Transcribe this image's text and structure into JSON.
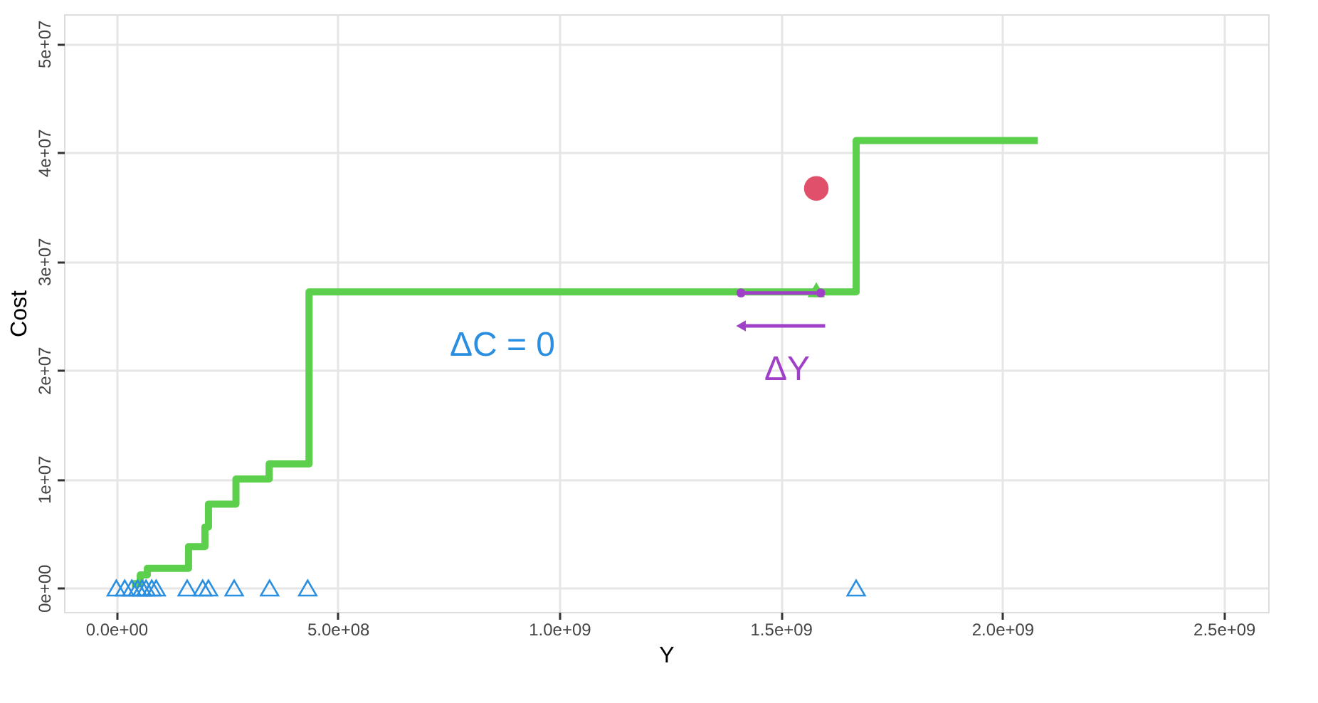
{
  "chart_data": {
    "type": "step",
    "xlabel": "Y",
    "ylabel": "Cost",
    "xlim": [
      -118000000,
      2600000000
    ],
    "ylim": [
      -2200000,
      52700000
    ],
    "xticks": [
      {
        "value": 0,
        "label": "0.0e+00"
      },
      {
        "value": 500000000,
        "label": "5.0e+08"
      },
      {
        "value": 1000000000,
        "label": "1.0e+09"
      },
      {
        "value": 1500000000,
        "label": "1.5e+09"
      },
      {
        "value": 2000000000,
        "label": "2.0e+09"
      },
      {
        "value": 2500000000,
        "label": "2.5e+09"
      }
    ],
    "yticks": [
      {
        "value": 0,
        "label": "0e+00"
      },
      {
        "value": 10000000,
        "label": "1e+07"
      },
      {
        "value": 20000000,
        "label": "2e+07"
      },
      {
        "value": 30000000,
        "label": "3e+07"
      },
      {
        "value": 40000000,
        "label": "4e+07"
      },
      {
        "value": 50000000,
        "label": "5e+07"
      }
    ],
    "grid": true,
    "series": [
      {
        "color": "#5ccf4c",
        "x": [
          35000000,
          54000000,
          70000000,
          163000000,
          200000000,
          208000000,
          270000000,
          345000000,
          435000000,
          1670000000,
          2080000000
        ],
        "values": [
          400000,
          1200000,
          1800000,
          3800000,
          5600000,
          7700000,
          10000000,
          11400000,
          27200000,
          41100000,
          41100000
        ]
      },
      {
        "type": "scatter",
        "marker": "triangle",
        "color": "#2a8fe0",
        "x": [
          0,
          19000000,
          35000000,
          48000000,
          58000000,
          67000000,
          80000000,
          90000000,
          160000000,
          195000000,
          208000000,
          266000000,
          346000000,
          432000000,
          1670000000
        ],
        "values": [
          0,
          0,
          0,
          0,
          0,
          0,
          0,
          0,
          0,
          0,
          0,
          0,
          0,
          0,
          0
        ]
      },
      {
        "type": "scatter",
        "marker": "triangle",
        "color": "#5ccf4c",
        "x": [
          1580000000
        ],
        "values": [
          27400000
        ]
      },
      {
        "type": "scatter",
        "marker": "circle",
        "color": "#e0506a",
        "x": [
          1580000000
        ],
        "values": [
          36700000
        ]
      },
      {
        "type": "line",
        "marker": "circle",
        "color": "#a040c8",
        "x": [
          1410000000,
          1590000000
        ],
        "values": [
          27100000,
          27100000
        ]
      }
    ],
    "annotations": [
      "ΔC = 0",
      "ΔY"
    ]
  }
}
